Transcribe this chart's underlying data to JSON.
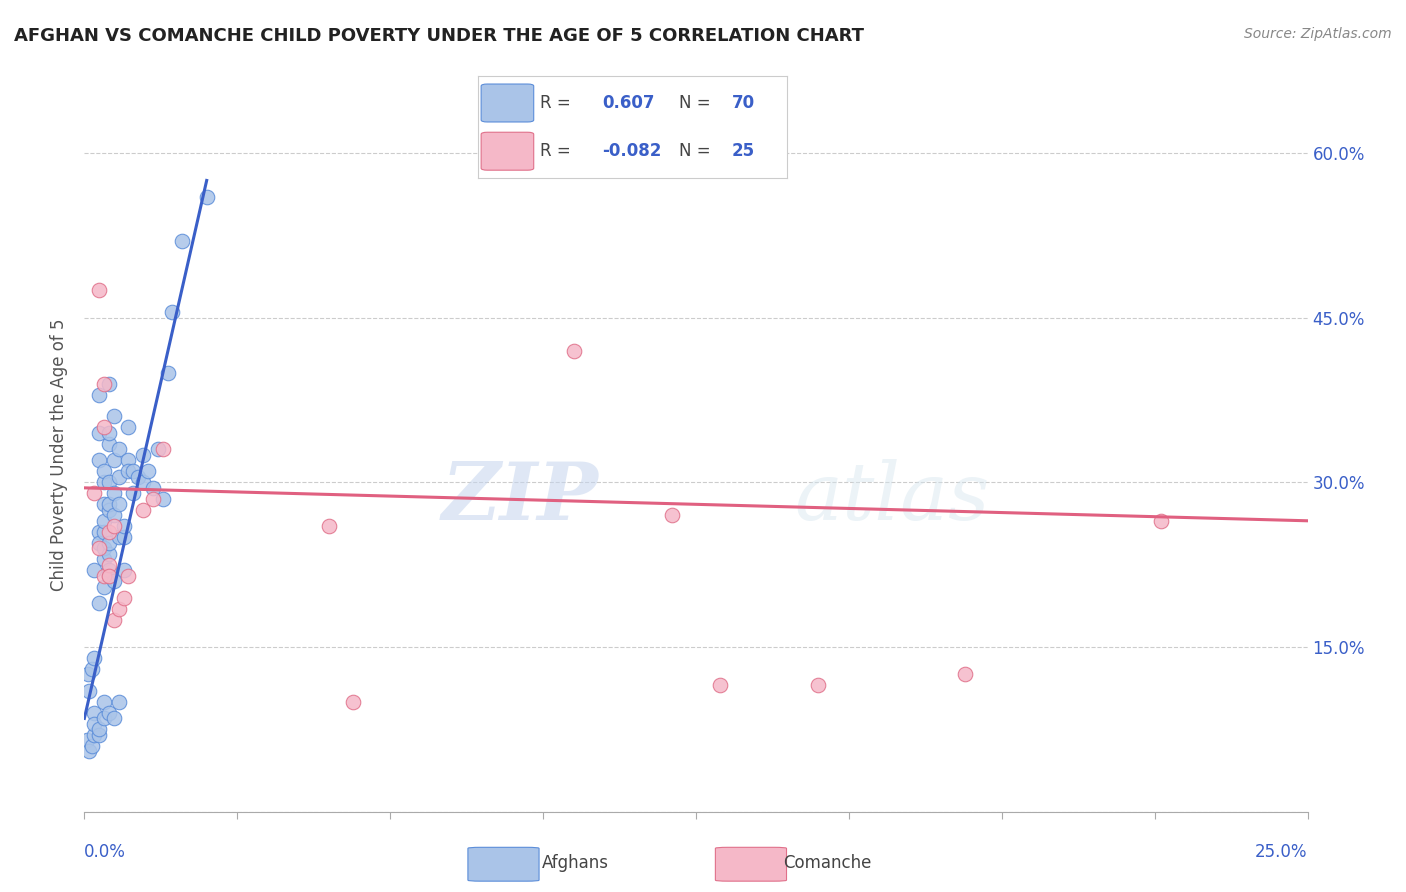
{
  "title": "AFGHAN VS COMANCHE CHILD POVERTY UNDER THE AGE OF 5 CORRELATION CHART",
  "source": "Source: ZipAtlas.com",
  "ylabel": "Child Poverty Under the Age of 5",
  "xlim": [
    0.0,
    0.25
  ],
  "ylim": [
    0.0,
    0.65
  ],
  "yticks": [
    0.0,
    0.15,
    0.3,
    0.45,
    0.6
  ],
  "ytick_labels": [
    "",
    "15.0%",
    "30.0%",
    "45.0%",
    "60.0%"
  ],
  "background_color": "#ffffff",
  "watermark_zip": "ZIP",
  "watermark_atlas": "atlas",
  "legend_r_afghan": "0.607",
  "legend_n_afghan": "70",
  "legend_r_comanche": "-0.082",
  "legend_n_comanche": "25",
  "afghan_color": "#aac4e8",
  "comanche_color": "#f5b8c8",
  "afghan_edge_color": "#5b8dd9",
  "comanche_edge_color": "#e0708a",
  "afghan_line_color": "#3a5fc8",
  "comanche_line_color": "#e06080",
  "afghan_scatter": [
    [
      0.0008,
      0.125
    ],
    [
      0.001,
      0.11
    ],
    [
      0.0015,
      0.13
    ],
    [
      0.002,
      0.09
    ],
    [
      0.002,
      0.14
    ],
    [
      0.002,
      0.22
    ],
    [
      0.003,
      0.255
    ],
    [
      0.003,
      0.19
    ],
    [
      0.003,
      0.245
    ],
    [
      0.003,
      0.32
    ],
    [
      0.003,
      0.345
    ],
    [
      0.003,
      0.38
    ],
    [
      0.004,
      0.23
    ],
    [
      0.004,
      0.255
    ],
    [
      0.004,
      0.28
    ],
    [
      0.004,
      0.3
    ],
    [
      0.004,
      0.31
    ],
    [
      0.004,
      0.205
    ],
    [
      0.004,
      0.24
    ],
    [
      0.004,
      0.265
    ],
    [
      0.005,
      0.215
    ],
    [
      0.005,
      0.235
    ],
    [
      0.005,
      0.275
    ],
    [
      0.005,
      0.335
    ],
    [
      0.005,
      0.22
    ],
    [
      0.005,
      0.245
    ],
    [
      0.005,
      0.28
    ],
    [
      0.005,
      0.3
    ],
    [
      0.005,
      0.345
    ],
    [
      0.005,
      0.39
    ],
    [
      0.006,
      0.27
    ],
    [
      0.006,
      0.32
    ],
    [
      0.006,
      0.21
    ],
    [
      0.006,
      0.29
    ],
    [
      0.006,
      0.36
    ],
    [
      0.007,
      0.25
    ],
    [
      0.007,
      0.28
    ],
    [
      0.007,
      0.305
    ],
    [
      0.007,
      0.33
    ],
    [
      0.008,
      0.22
    ],
    [
      0.008,
      0.25
    ],
    [
      0.008,
      0.26
    ],
    [
      0.009,
      0.32
    ],
    [
      0.009,
      0.31
    ],
    [
      0.009,
      0.35
    ],
    [
      0.01,
      0.29
    ],
    [
      0.01,
      0.31
    ],
    [
      0.011,
      0.305
    ],
    [
      0.012,
      0.325
    ],
    [
      0.012,
      0.3
    ],
    [
      0.013,
      0.31
    ],
    [
      0.014,
      0.295
    ],
    [
      0.015,
      0.33
    ],
    [
      0.016,
      0.285
    ],
    [
      0.017,
      0.4
    ],
    [
      0.018,
      0.455
    ],
    [
      0.02,
      0.52
    ],
    [
      0.025,
      0.56
    ],
    [
      0.0005,
      0.065
    ],
    [
      0.001,
      0.055
    ],
    [
      0.0015,
      0.06
    ],
    [
      0.002,
      0.07
    ],
    [
      0.002,
      0.08
    ],
    [
      0.003,
      0.07
    ],
    [
      0.003,
      0.075
    ],
    [
      0.004,
      0.085
    ],
    [
      0.004,
      0.1
    ],
    [
      0.005,
      0.09
    ],
    [
      0.006,
      0.085
    ],
    [
      0.007,
      0.1
    ]
  ],
  "comanche_scatter": [
    [
      0.002,
      0.29
    ],
    [
      0.003,
      0.475
    ],
    [
      0.003,
      0.24
    ],
    [
      0.004,
      0.39
    ],
    [
      0.004,
      0.35
    ],
    [
      0.004,
      0.215
    ],
    [
      0.005,
      0.225
    ],
    [
      0.005,
      0.255
    ],
    [
      0.005,
      0.215
    ],
    [
      0.006,
      0.26
    ],
    [
      0.006,
      0.175
    ],
    [
      0.007,
      0.185
    ],
    [
      0.008,
      0.195
    ],
    [
      0.009,
      0.215
    ],
    [
      0.012,
      0.275
    ],
    [
      0.014,
      0.285
    ],
    [
      0.016,
      0.33
    ],
    [
      0.05,
      0.26
    ],
    [
      0.055,
      0.1
    ],
    [
      0.1,
      0.42
    ],
    [
      0.12,
      0.27
    ],
    [
      0.13,
      0.115
    ],
    [
      0.15,
      0.115
    ],
    [
      0.18,
      0.125
    ],
    [
      0.22,
      0.265
    ]
  ],
  "afghan_trend_x": [
    0.0,
    0.025
  ],
  "afghan_trend_y": [
    0.085,
    0.575
  ],
  "comanche_trend_x": [
    0.0,
    0.25
  ],
  "comanche_trend_y": [
    0.295,
    0.265
  ]
}
